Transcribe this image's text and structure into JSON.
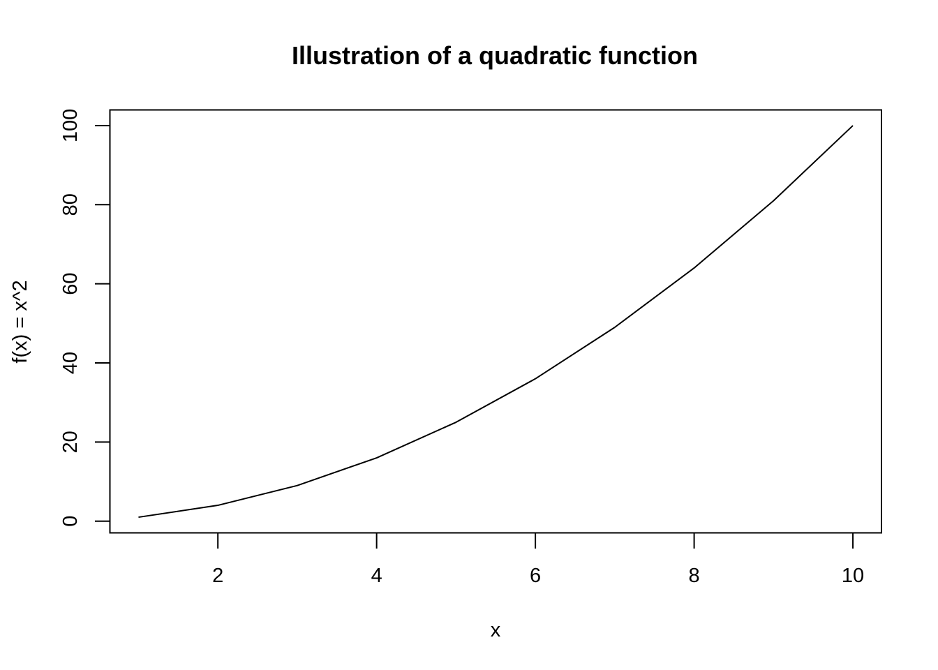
{
  "chart_data": {
    "type": "line",
    "title": "Illustration of a quadratic function",
    "xlabel": "x",
    "ylabel": "f(x) = x^2",
    "x": [
      1,
      2,
      3,
      4,
      5,
      6,
      7,
      8,
      9,
      10
    ],
    "series": [
      {
        "values": [
          1,
          4,
          9,
          16,
          25,
          36,
          49,
          64,
          81,
          100
        ]
      }
    ],
    "xlim": [
      0.64,
      10.36
    ],
    "ylim": [
      -2.96,
      103.96
    ],
    "xticks": [
      2,
      4,
      6,
      8,
      10
    ],
    "xtick_labels": [
      "2",
      "4",
      "6",
      "8",
      "10"
    ],
    "yticks": [
      0,
      20,
      40,
      60,
      80,
      100
    ],
    "ytick_labels": [
      "0",
      "20",
      "40",
      "60",
      "80",
      "100"
    ],
    "grid": false,
    "line_color": "#000000"
  }
}
